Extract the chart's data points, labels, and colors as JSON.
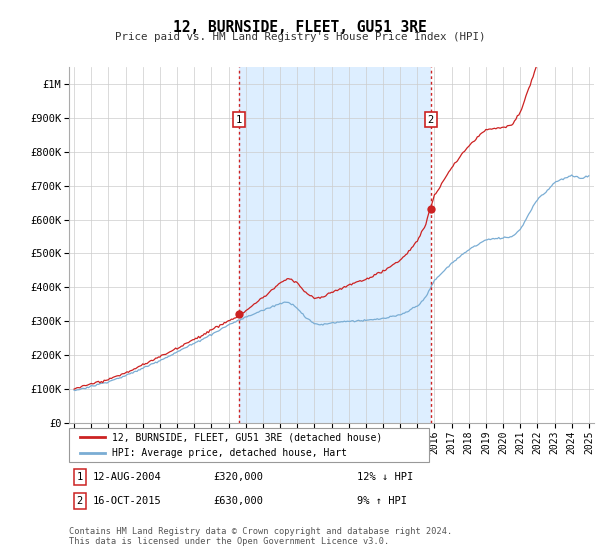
{
  "title": "12, BURNSIDE, FLEET, GU51 3RE",
  "subtitle": "Price paid vs. HM Land Registry's House Price Index (HPI)",
  "legend_line1": "12, BURNSIDE, FLEET, GU51 3RE (detached house)",
  "legend_line2": "HPI: Average price, detached house, Hart",
  "sale1_date": "12-AUG-2004",
  "sale1_price": "£320,000",
  "sale1_hpi": "12% ↓ HPI",
  "sale1_year": 2004.62,
  "sale1_value": 320000,
  "sale2_date": "16-OCT-2015",
  "sale2_price": "£630,000",
  "sale2_hpi": "9% ↑ HPI",
  "sale2_year": 2015.79,
  "sale2_value": 630000,
  "hpi_color": "#7aadd4",
  "price_color": "#cc2222",
  "vline_color": "#cc2222",
  "shade_color": "#ddeeff",
  "footnote": "Contains HM Land Registry data © Crown copyright and database right 2024.\nThis data is licensed under the Open Government Licence v3.0.",
  "ylim": [
    0,
    1050000
  ],
  "xlim_start": 1994.7,
  "xlim_end": 2025.3,
  "yticks": [
    0,
    100000,
    200000,
    300000,
    400000,
    500000,
    600000,
    700000,
    800000,
    900000,
    1000000
  ],
  "ytick_labels": [
    "£0",
    "£100K",
    "£200K",
    "£300K",
    "£400K",
    "£500K",
    "£600K",
    "£700K",
    "£800K",
    "£900K",
    "£1M"
  ],
  "xticks": [
    1995,
    1996,
    1997,
    1998,
    1999,
    2000,
    2001,
    2002,
    2003,
    2004,
    2005,
    2006,
    2007,
    2008,
    2009,
    2010,
    2011,
    2012,
    2013,
    2014,
    2015,
    2016,
    2017,
    2018,
    2019,
    2020,
    2021,
    2022,
    2023,
    2024,
    2025
  ]
}
